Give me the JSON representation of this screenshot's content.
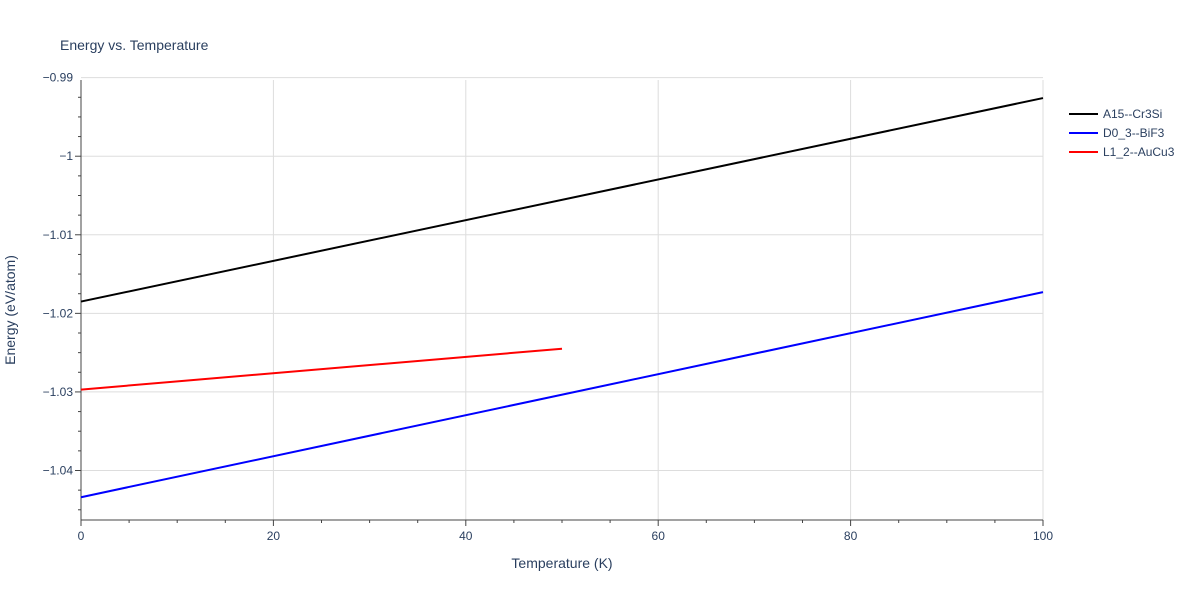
{
  "chart_data": {
    "type": "line",
    "title": "Energy vs. Temperature",
    "xlabel": "Temperature (K)",
    "ylabel": "Energy (eV/atom)",
    "xlim": [
      0,
      100
    ],
    "ylim": [
      -1.0463,
      -0.9903
    ],
    "xticks": [
      0,
      20,
      40,
      60,
      80,
      100
    ],
    "xtick_labels": [
      "0",
      "20",
      "40",
      "60",
      "80",
      "100"
    ],
    "yticks": [
      -1.04,
      -1.03,
      -1.02,
      -1.01,
      -1.0,
      -0.99
    ],
    "ytick_labels": [
      "−1.04",
      "−1.03",
      "−1.02",
      "−1.01",
      "−1",
      "−0.99"
    ],
    "grid": true,
    "legend_position": "top-right",
    "series": [
      {
        "name": "A15--Cr3Si",
        "color": "#000000",
        "x": [
          0,
          100
        ],
        "y": [
          -1.0185,
          -0.9926
        ]
      },
      {
        "name": "D0_3--BiF3",
        "color": "#0000ff",
        "x": [
          0,
          100
        ],
        "y": [
          -1.0434,
          -1.0173
        ]
      },
      {
        "name": "L1_2--AuCu3",
        "color": "#ff0000",
        "x": [
          0,
          50
        ],
        "y": [
          -1.0297,
          -1.0245
        ]
      }
    ]
  }
}
